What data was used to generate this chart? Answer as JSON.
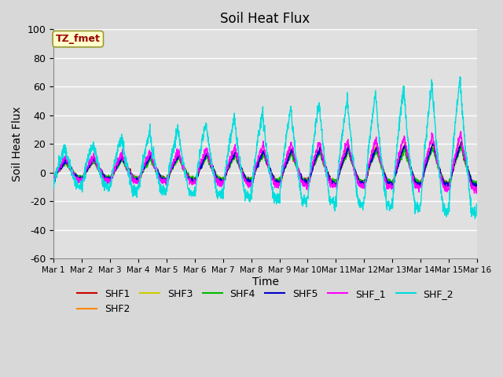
{
  "title": "Soil Heat Flux",
  "ylabel": "Soil Heat Flux",
  "xlabel": "Time",
  "ylim": [
    -60,
    100
  ],
  "xlim": [
    0,
    15
  ],
  "xtick_labels": [
    "Mar 1",
    "Mar 2",
    "Mar 3",
    "Mar 4",
    "Mar 5",
    "Mar 6",
    "Mar 7",
    "Mar 8",
    "Mar 9",
    "Mar 10",
    "Mar 11",
    "Mar 12",
    "Mar 13",
    "Mar 14",
    "Mar 15",
    "Mar 16"
  ],
  "ytick_values": [
    -60,
    -40,
    -20,
    0,
    20,
    40,
    60,
    80,
    100
  ],
  "series_colors": {
    "SHF1": "#cc0000",
    "SHF2": "#ff8800",
    "SHF3": "#cccc00",
    "SHF4": "#00bb00",
    "SHF5": "#0000cc",
    "SHF_1": "#ff00ff",
    "SHF_2": "#00dddd"
  },
  "annotation_text": "TZ_fmet",
  "annotation_box_color": "#ffffcc",
  "annotation_text_color": "#990000",
  "bg_color": "#e0e0e0",
  "grid_color": "#ffffff",
  "linewidth": 1.0,
  "fig_bg": "#d8d8d8"
}
